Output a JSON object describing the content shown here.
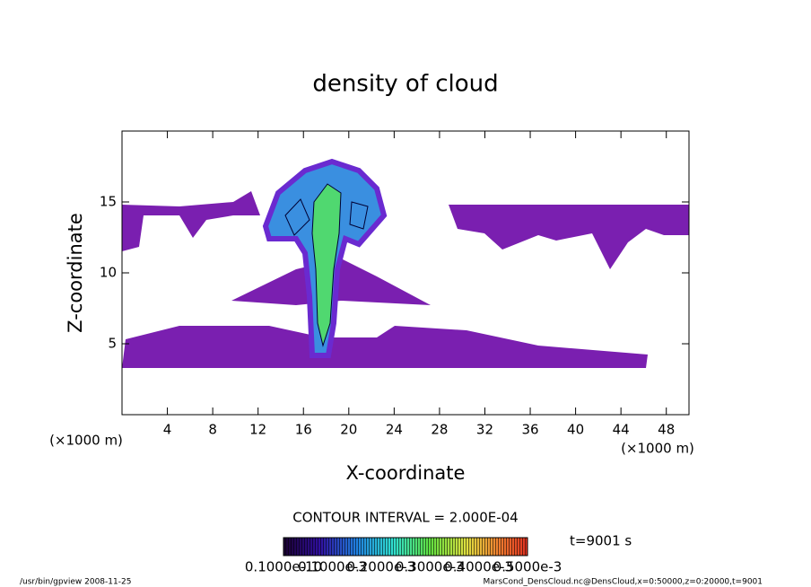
{
  "chart_data": {
    "type": "contour",
    "title": "density of cloud",
    "x_label": "X-coordinate",
    "y_label": "Z-coordinate",
    "x_unit_label": "(×1000 m)",
    "y_unit_label": "(×1000 m)",
    "xlim": [
      0,
      50
    ],
    "ylim": [
      0,
      20
    ],
    "xticks": [
      4,
      8,
      12,
      16,
      20,
      24,
      28,
      32,
      36,
      40,
      44,
      48
    ],
    "yticks": [
      5,
      10,
      15
    ],
    "contour_interval": "CONTOUR INTERVAL = 2.000E-04",
    "time_label": "t=9001 s",
    "colorbar_labels": [
      "0.1000e-10",
      "0.1000e-3",
      "0.2000e-3",
      "0.3000e-3",
      "0.4000e-3",
      "0.5000e-3"
    ],
    "footer_left": "/usr/bin/gpview  2008-11-25",
    "footer_right": "MarsCond_DensCloud.nc@DensCloud,x=0:50000,z=0:20000,t=9001"
  }
}
